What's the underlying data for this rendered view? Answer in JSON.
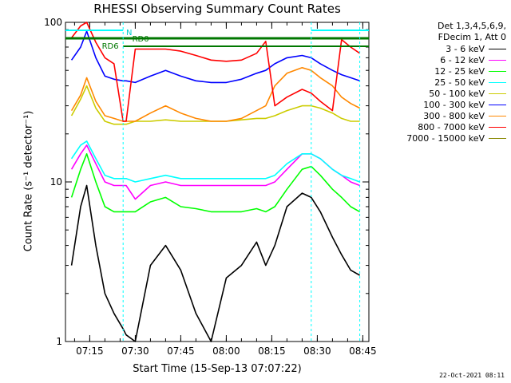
{
  "chart_data": {
    "type": "line",
    "title": "RHESSI Observing Summary Count Rates",
    "xlabel": "Start Time (15-Sep-13 07:07:22)",
    "ylabel": "Count Rate (s⁻¹ detector⁻¹)",
    "y_scale": "log",
    "ylim": [
      1,
      100
    ],
    "xlim_minutes": [
      "07:07",
      "08:47"
    ],
    "x_ticks": [
      "07:15",
      "07:30",
      "07:45",
      "08:00",
      "08:15",
      "08:30",
      "08:45"
    ],
    "y_ticks": [
      "1",
      "10",
      "100"
    ],
    "legend_header": [
      "Det 1,3,4,5,6,9,",
      "FDecim 1, Att 0"
    ],
    "legend_placement": "right",
    "x": [
      "07:09",
      "07:12",
      "07:14",
      "07:17",
      "07:20",
      "07:23",
      "07:26",
      "07:27",
      "07:30",
      "07:35",
      "07:40",
      "07:45",
      "07:50",
      "07:55",
      "08:00",
      "08:05",
      "08:10",
      "08:13",
      "08:16",
      "08:20",
      "08:25",
      "08:28",
      "08:31",
      "08:35",
      "08:38",
      "08:41",
      "08:44"
    ],
    "series": [
      {
        "name": "3 - 6 keV",
        "color": "#000000",
        "values": [
          3.0,
          7.0,
          9.5,
          4.0,
          2.0,
          1.5,
          1.2,
          1.1,
          1.0,
          3.0,
          4.0,
          2.8,
          1.5,
          1.0,
          2.5,
          3.0,
          4.2,
          3.0,
          4.0,
          7.0,
          8.5,
          8.0,
          6.5,
          4.5,
          3.5,
          2.8,
          2.6
        ]
      },
      {
        "name": "6 - 12 keV",
        "color": "#ff00ff",
        "values": [
          12,
          15,
          17,
          13,
          10,
          9.5,
          9.5,
          9.5,
          7.8,
          9.5,
          10,
          9.5,
          9.5,
          9.5,
          9.5,
          9.5,
          9.5,
          9.5,
          10,
          12,
          15,
          15,
          14,
          12,
          11,
          10,
          9.5
        ]
      },
      {
        "name": "12 - 25 keV",
        "color": "#00ff00",
        "values": [
          8,
          12,
          15,
          10,
          7,
          6.5,
          6.5,
          6.5,
          6.5,
          7.5,
          8,
          7,
          6.8,
          6.5,
          6.5,
          6.5,
          6.8,
          6.5,
          7,
          9,
          12,
          12.5,
          11,
          9,
          8,
          7,
          6.5
        ]
      },
      {
        "name": "25 - 50 keV",
        "color": "#00ffff",
        "values": [
          14,
          17,
          18,
          14,
          11,
          10.5,
          10.5,
          10.5,
          10,
          10.5,
          11,
          10.5,
          10.5,
          10.5,
          10.5,
          10.5,
          10.5,
          10.5,
          11,
          13,
          15,
          15,
          14,
          12,
          11,
          10.5,
          10
        ]
      },
      {
        "name": "50 - 100 keV",
        "color": "#cccc00",
        "values": [
          26,
          33,
          40,
          29,
          24,
          23,
          23,
          23,
          24,
          24,
          24.5,
          24,
          24,
          24,
          24,
          24.5,
          25,
          25,
          26,
          28,
          30,
          30,
          29,
          27,
          25,
          24,
          24
        ]
      },
      {
        "name": "100 - 300 keV",
        "color": "#0000ff",
        "values": [
          58,
          70,
          88,
          60,
          46,
          44,
          43,
          43,
          42,
          46,
          50,
          46,
          43,
          42,
          42,
          44,
          48,
          50,
          55,
          60,
          62,
          60,
          55,
          50,
          47,
          45,
          43
        ]
      },
      {
        "name": "300 - 800 keV",
        "color": "#ff8800",
        "values": [
          28,
          35,
          45,
          32,
          26,
          25,
          24,
          24,
          24,
          27,
          30,
          27,
          25,
          24,
          24,
          25,
          28,
          30,
          40,
          48,
          52,
          50,
          45,
          40,
          34,
          31,
          29
        ]
      },
      {
        "name": "800 - 7000 keV",
        "color": "#ff0000",
        "values": [
          80,
          95,
          100,
          75,
          60,
          55,
          24,
          24,
          68,
          68,
          68,
          66,
          62,
          58,
          57,
          58,
          64,
          76,
          30,
          34,
          38,
          36,
          32,
          28,
          78,
          70,
          64
        ]
      },
      {
        "name": "7000 - 15000 keV",
        "color": "#888800",
        "values": [
          null,
          null,
          null,
          null,
          null,
          null,
          null,
          null,
          null,
          null,
          null,
          null,
          null,
          null,
          null,
          null,
          null,
          null,
          null,
          null,
          null,
          null,
          null,
          null,
          null,
          null,
          null
        ]
      }
    ],
    "annotations": [
      "N",
      "RD6",
      "RD0"
    ],
    "grid": false,
    "timestamp": "22-Oct-2021 08:11"
  }
}
